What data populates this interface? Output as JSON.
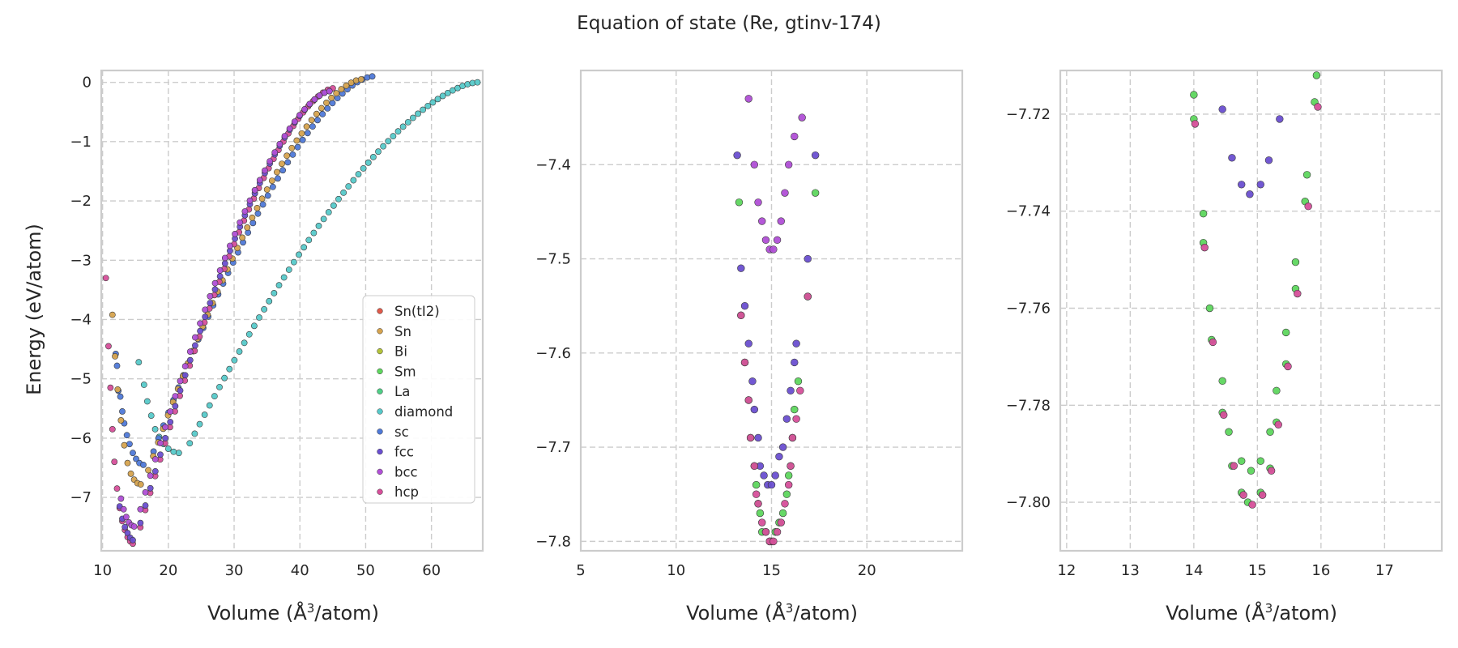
{
  "figure": {
    "title": "Equation of state (Re, gtinv-174)",
    "ylabel": "Energy (eV/atom)",
    "xlabel_prefix": "Volume (",
    "xlabel_unit": "Å",
    "xlabel_exp": "3",
    "xlabel_suffix": "/atom)"
  },
  "colors": {
    "Sn(tI2)": "#e05a4a",
    "Sn": "#d6a34e",
    "Bi": "#b3c23a",
    "Sm": "#5ed65e",
    "La": "#4fcf86",
    "diamond": "#56c9c9",
    "sc": "#4f79d8",
    "fcc": "#6a4fd0",
    "bcc": "#b04fd6",
    "hcp": "#d64f9a"
  },
  "chart_data": [
    {
      "type": "scatter",
      "panel": "full",
      "xlim": [
        9.8,
        67.8
      ],
      "ylim": [
        -7.9,
        0.2
      ],
      "xticks": [
        10,
        20,
        30,
        40,
        50,
        60
      ],
      "yticks": [
        0,
        -1,
        -2,
        -3,
        -4,
        -5,
        -6,
        -7
      ],
      "grid": true,
      "legend": {
        "placement": "lower-right",
        "entries": [
          "Sn(tI2)",
          "Sn",
          "Bi",
          "Sm",
          "La",
          "diamond",
          "sc",
          "fcc",
          "bcc",
          "hcp"
        ]
      },
      "curves": [
        {
          "name": "diamond",
          "v0": 22.5,
          "e0": -6.25,
          "vstart": 15.5,
          "vend": 67.0,
          "eend": 0.0,
          "left": [
            [
              15.5,
              -4.72
            ],
            [
              16.3,
              -5.1
            ],
            [
              16.8,
              -5.38
            ],
            [
              17.4,
              -5.62
            ],
            [
              18.0,
              -5.85
            ],
            [
              18.6,
              -5.98
            ],
            [
              19.3,
              -6.1
            ],
            [
              20.0,
              -6.18
            ],
            [
              20.8,
              -6.23
            ],
            [
              21.6,
              -6.25
            ]
          ]
        },
        {
          "name": "sc",
          "v0": 17.0,
          "e0": -6.45,
          "vstart": 12.0,
          "vend": 51.0,
          "eend": 0.1,
          "left": [
            [
              12.0,
              -4.58
            ],
            [
              12.2,
              -4.78
            ],
            [
              12.4,
              -5.2
            ],
            [
              12.7,
              -5.3
            ],
            [
              13.0,
              -5.55
            ],
            [
              13.3,
              -5.75
            ],
            [
              13.7,
              -5.95
            ],
            [
              14.1,
              -6.1
            ],
            [
              14.6,
              -6.25
            ],
            [
              15.1,
              -6.35
            ],
            [
              15.6,
              -6.42
            ],
            [
              16.2,
              -6.45
            ]
          ]
        },
        {
          "name": "Sn",
          "v0": 16.2,
          "e0": -6.78,
          "vstart": 11.5,
          "vend": 49.3,
          "eend": 0.05,
          "left": [
            [
              11.5,
              -3.92
            ],
            [
              11.9,
              -4.62
            ],
            [
              12.3,
              -5.18
            ],
            [
              12.8,
              -5.7
            ],
            [
              13.3,
              -6.12
            ],
            [
              13.8,
              -6.42
            ],
            [
              14.3,
              -6.6
            ],
            [
              14.8,
              -6.7
            ],
            [
              15.3,
              -6.76
            ],
            [
              15.8,
              -6.78
            ]
          ]
        },
        {
          "name": "hcp",
          "v0": 15.0,
          "e0": -7.8,
          "vstart": 10.5,
          "vend": 45.0,
          "eend": -0.1,
          "left": [
            [
              10.5,
              -3.3
            ],
            [
              10.9,
              -4.45
            ],
            [
              11.2,
              -5.15
            ],
            [
              11.5,
              -5.85
            ],
            [
              11.8,
              -6.4
            ],
            [
              12.2,
              -6.85
            ],
            [
              12.6,
              -7.18
            ],
            [
              13.0,
              -7.4
            ],
            [
              13.4,
              -7.55
            ],
            [
              13.8,
              -7.67
            ],
            [
              14.2,
              -7.74
            ],
            [
              14.6,
              -7.78
            ]
          ]
        },
        {
          "name": "fcc",
          "v0": 15.0,
          "e0": -7.73,
          "vstart": 12.0,
          "vend": 44.5,
          "eend": -0.15,
          "left": [
            [
              12.6,
              -7.15
            ],
            [
              13.0,
              -7.36
            ],
            [
              13.4,
              -7.5
            ],
            [
              13.8,
              -7.6
            ],
            [
              14.2,
              -7.68
            ],
            [
              14.6,
              -7.72
            ]
          ]
        },
        {
          "name": "bcc",
          "v0": 15.0,
          "e0": -7.49,
          "vstart": 12.0,
          "vend": 44.5,
          "eend": -0.15,
          "left": [
            [
              12.8,
              -7.02
            ],
            [
              13.2,
              -7.2
            ],
            [
              13.6,
              -7.33
            ],
            [
              14.0,
              -7.42
            ],
            [
              14.4,
              -7.47
            ],
            [
              14.8,
              -7.49
            ]
          ]
        }
      ]
    },
    {
      "type": "scatter",
      "panel": "zoom-1",
      "xlim": [
        5,
        25
      ],
      "ylim": [
        -7.81,
        -7.3
      ],
      "xticks": [
        5,
        10,
        15,
        20
      ],
      "yticks": [
        -7.4,
        -7.5,
        -7.6,
        -7.7,
        -7.8
      ],
      "grid": true,
      "series": [
        {
          "name": "bcc",
          "points": [
            [
              13.8,
              -7.33
            ],
            [
              14.1,
              -7.4
            ],
            [
              14.3,
              -7.44
            ],
            [
              14.5,
              -7.46
            ],
            [
              14.7,
              -7.48
            ],
            [
              14.9,
              -7.49
            ],
            [
              15.1,
              -7.49
            ],
            [
              15.3,
              -7.48
            ],
            [
              15.5,
              -7.46
            ],
            [
              15.7,
              -7.43
            ],
            [
              15.9,
              -7.4
            ],
            [
              16.2,
              -7.37
            ],
            [
              16.6,
              -7.35
            ]
          ]
        },
        {
          "name": "fcc",
          "points": [
            [
              13.2,
              -7.39
            ],
            [
              13.4,
              -7.51
            ],
            [
              13.6,
              -7.55
            ],
            [
              13.8,
              -7.59
            ],
            [
              14.0,
              -7.63
            ],
            [
              14.1,
              -7.66
            ],
            [
              14.3,
              -7.69
            ],
            [
              14.4,
              -7.72
            ],
            [
              14.6,
              -7.73
            ],
            [
              14.8,
              -7.74
            ],
            [
              15.0,
              -7.74
            ],
            [
              15.2,
              -7.73
            ],
            [
              15.4,
              -7.71
            ],
            [
              15.6,
              -7.7
            ],
            [
              15.8,
              -7.67
            ],
            [
              16.0,
              -7.64
            ],
            [
              16.2,
              -7.61
            ],
            [
              16.3,
              -7.59
            ],
            [
              16.9,
              -7.5
            ],
            [
              17.3,
              -7.39
            ]
          ]
        },
        {
          "name": "Sm",
          "points": [
            [
              13.3,
              -7.44
            ],
            [
              13.4,
              -7.56
            ],
            [
              13.6,
              -7.61
            ],
            [
              13.8,
              -7.65
            ],
            [
              13.9,
              -7.69
            ],
            [
              14.1,
              -7.72
            ],
            [
              14.2,
              -7.74
            ],
            [
              14.3,
              -7.76
            ],
            [
              14.4,
              -7.77
            ],
            [
              14.5,
              -7.79
            ],
            [
              14.7,
              -7.79
            ],
            [
              14.9,
              -7.8
            ],
            [
              15.0,
              -7.8
            ],
            [
              15.2,
              -7.79
            ],
            [
              15.4,
              -7.78
            ],
            [
              15.6,
              -7.77
            ],
            [
              15.8,
              -7.75
            ],
            [
              15.9,
              -7.73
            ],
            [
              16.0,
              -7.72
            ],
            [
              16.1,
              -7.69
            ],
            [
              16.2,
              -7.66
            ],
            [
              16.4,
              -7.63
            ],
            [
              16.9,
              -7.54
            ],
            [
              17.3,
              -7.43
            ]
          ]
        },
        {
          "name": "hcp",
          "points": [
            [
              13.4,
              -7.56
            ],
            [
              13.6,
              -7.61
            ],
            [
              13.8,
              -7.65
            ],
            [
              13.9,
              -7.69
            ],
            [
              14.1,
              -7.72
            ],
            [
              14.2,
              -7.75
            ],
            [
              14.3,
              -7.76
            ],
            [
              14.5,
              -7.78
            ],
            [
              14.7,
              -7.79
            ],
            [
              14.9,
              -7.8
            ],
            [
              15.1,
              -7.8
            ],
            [
              15.3,
              -7.79
            ],
            [
              15.5,
              -7.78
            ],
            [
              15.7,
              -7.76
            ],
            [
              15.9,
              -7.74
            ],
            [
              16.0,
              -7.72
            ],
            [
              16.1,
              -7.69
            ],
            [
              16.3,
              -7.67
            ],
            [
              16.5,
              -7.64
            ],
            [
              16.9,
              -7.54
            ]
          ]
        }
      ]
    },
    {
      "type": "scatter",
      "panel": "zoom-2",
      "xlim": [
        11.9,
        17.9
      ],
      "ylim": [
        -7.81,
        -7.711
      ],
      "xticks": [
        12,
        13,
        14,
        15,
        16,
        17
      ],
      "yticks": [
        -7.72,
        -7.74,
        -7.76,
        -7.78,
        -7.8
      ],
      "grid": true,
      "series": [
        {
          "name": "Sm",
          "points": [
            [
              14.0,
              -7.716
            ],
            [
              14.0,
              -7.721
            ],
            [
              14.15,
              -7.7405
            ],
            [
              14.15,
              -7.7465
            ],
            [
              14.25,
              -7.76
            ],
            [
              14.28,
              -7.7665
            ],
            [
              14.45,
              -7.775
            ],
            [
              14.45,
              -7.7815
            ],
            [
              14.55,
              -7.7855
            ],
            [
              14.6,
              -7.7925
            ],
            [
              14.75,
              -7.7915
            ],
            [
              14.75,
              -7.798
            ],
            [
              14.85,
              -7.8
            ],
            [
              14.9,
              -7.7935
            ],
            [
              15.05,
              -7.7915
            ],
            [
              15.05,
              -7.798
            ],
            [
              15.2,
              -7.7855
            ],
            [
              15.2,
              -7.793
            ],
            [
              15.3,
              -7.777
            ],
            [
              15.3,
              -7.7835
            ],
            [
              15.45,
              -7.7715
            ],
            [
              15.45,
              -7.765
            ],
            [
              15.6,
              -7.7505
            ],
            [
              15.6,
              -7.756
            ],
            [
              15.75,
              -7.738
            ],
            [
              15.78,
              -7.7325
            ],
            [
              15.9,
              -7.7175
            ],
            [
              15.93,
              -7.712
            ]
          ]
        },
        {
          "name": "hcp",
          "points": [
            [
              14.02,
              -7.722
            ],
            [
              14.17,
              -7.7475
            ],
            [
              14.3,
              -7.767
            ],
            [
              14.47,
              -7.782
            ],
            [
              14.63,
              -7.7925
            ],
            [
              14.78,
              -7.7985
            ],
            [
              14.92,
              -7.8005
            ],
            [
              15.08,
              -7.7985
            ],
            [
              15.22,
              -7.7935
            ],
            [
              15.33,
              -7.784
            ],
            [
              15.48,
              -7.772
            ],
            [
              15.63,
              -7.757
            ],
            [
              15.8,
              -7.739
            ],
            [
              15.95,
              -7.7185
            ]
          ]
        },
        {
          "name": "fcc",
          "points": [
            [
              14.45,
              -7.719
            ],
            [
              14.6,
              -7.729
            ],
            [
              14.75,
              -7.7345
            ],
            [
              14.88,
              -7.7365
            ],
            [
              15.05,
              -7.7345
            ],
            [
              15.18,
              -7.7295
            ],
            [
              15.35,
              -7.721
            ]
          ]
        }
      ]
    }
  ]
}
